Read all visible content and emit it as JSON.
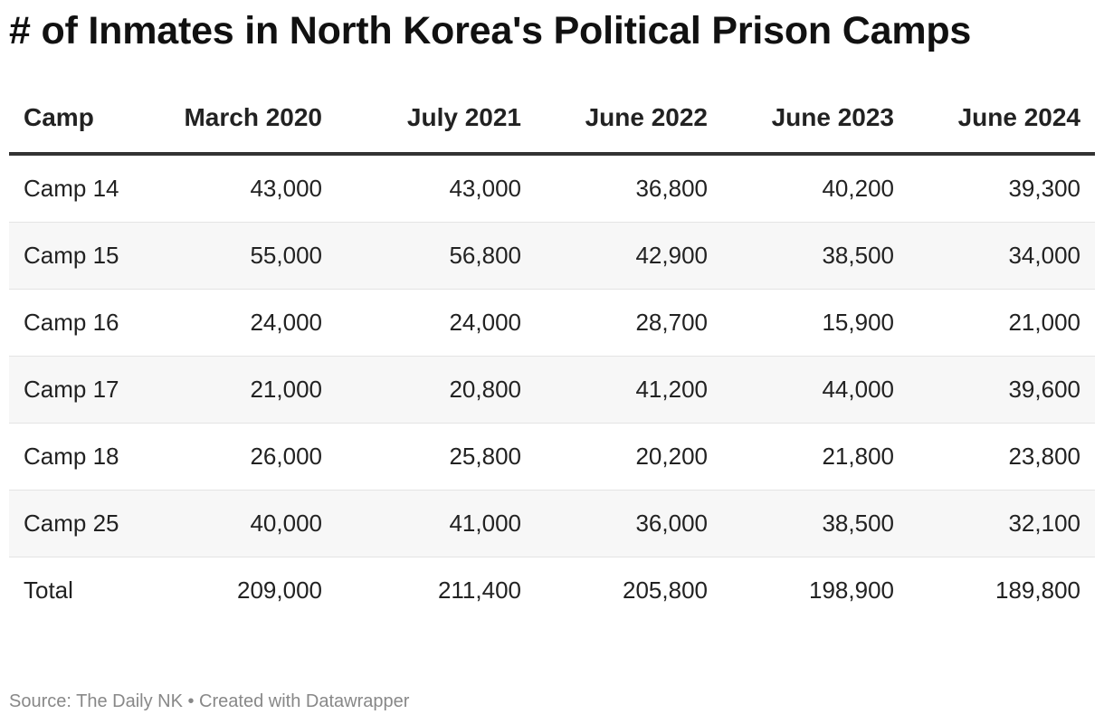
{
  "title": "# of Inmates in North Korea's Political Prison Camps",
  "chart_data": {
    "type": "table",
    "title": "# of Inmates in North Korea's Political Prison Camps",
    "columns": [
      "Camp",
      "March 2020",
      "July 2021",
      "June 2022",
      "June 2023",
      "June 2024"
    ],
    "rows": [
      [
        "Camp 14",
        "43,000",
        "43,000",
        "36,800",
        "40,200",
        "39,300"
      ],
      [
        "Camp 15",
        "55,000",
        "56,800",
        "42,900",
        "38,500",
        "34,000"
      ],
      [
        "Camp 16",
        "24,000",
        "24,000",
        "28,700",
        "15,900",
        "21,000"
      ],
      [
        "Camp 17",
        "21,000",
        "20,800",
        "41,200",
        "44,000",
        "39,600"
      ],
      [
        "Camp 18",
        "26,000",
        "25,800",
        "20,200",
        "21,800",
        "23,800"
      ],
      [
        "Camp 25",
        "40,000",
        "41,000",
        "36,000",
        "38,500",
        "32,100"
      ],
      [
        "Total",
        "209,000",
        "211,400",
        "205,800",
        "198,900",
        "189,800"
      ]
    ],
    "source": "Source: The Daily NK • Created with Datawrapper"
  }
}
